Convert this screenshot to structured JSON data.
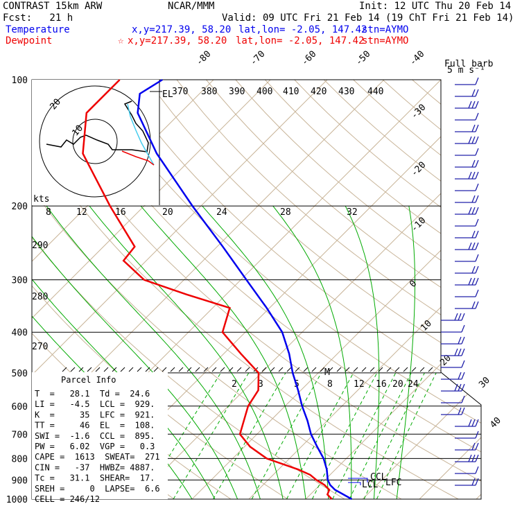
{
  "header": {
    "title": "CONTRAST 15km ARW",
    "org": "NCAR/MMM",
    "init": "Init: 12 UTC Thu 20 Feb 14",
    "fcst": "Fcst:   21 h",
    "valid": "Valid: 09 UTC Fri 21 Feb 14 (19 ChT Fri 21 Feb 14)",
    "temp_label": "Temperature",
    "temp_xy": "x,y=217.39, 58.20",
    "temp_latlon": "lat,lon= -2.05, 147.42",
    "temp_stn": "stn=AYMO",
    "dew_label": "Dewpoint",
    "dew_marker": "☆",
    "dew_xy": "x,y=217.39, 58.20",
    "dew_latlon": "lat,lon= -2.05, 147.42",
    "dew_stn": "stn=AYMO"
  },
  "barb_key": {
    "line1": "Full barb",
    "line2": "5 m s⁻¹"
  },
  "hodograph": {
    "units": "kts",
    "ring_label": "10",
    "ring_outer_label": "20"
  },
  "parcel_info": {
    "title": "Parcel Info",
    "rows": [
      "T  =   28.1  Td =  24.6",
      "LI =   -4.5  LCL =  929.",
      "K  =     35  LFC =  921.",
      "TT =     46  EL  =  108.",
      "SWI =  -1.6  CCL =  895.",
      "PW =   6.02  VGP =   0.3",
      "CAPE =  1613  SWEAT=  271",
      "CIN =   -37  HWBZ= 4887.",
      "Tc =   31.1  SHEAR=  17.",
      "SREH =     0  LAPSE=  6.6",
      "CELL = 246/12"
    ]
  },
  "markers": {
    "el": "EL",
    "ccl": "CCL",
    "lcl": "LCL",
    "lfc": "LFC",
    "m": "M"
  },
  "colors": {
    "temperature": "#0000ee",
    "dewpoint": "#ee0000",
    "isotherm": "#c8b498",
    "mixing_ratio": "#00aa00",
    "barb": "#2020aa"
  },
  "chart_data": {
    "type": "line",
    "title": "",
    "y_scale": "log-pressure",
    "ylim": [
      1000,
      100
    ],
    "pressure_levels": [
      100,
      200,
      300,
      400,
      500,
      600,
      700,
      800,
      900,
      1000
    ],
    "isotherm_labels": [
      "-80",
      "-70",
      "-60",
      "-50",
      "-40",
      "-30",
      "-20",
      "-10",
      "0",
      "10",
      "20",
      "30",
      "40"
    ],
    "theta_labels": [
      "370",
      "380",
      "390",
      "400",
      "410",
      "420",
      "430",
      "440",
      "290",
      "280",
      "270"
    ],
    "mixing_ratio_labels_upper": [
      "8",
      "12",
      "16",
      "20",
      "24",
      "28",
      "32"
    ],
    "mixing_ratio_labels_lower": [
      "2",
      "3",
      "5",
      "8",
      "12",
      "16",
      "20",
      "24"
    ],
    "series": [
      {
        "name": "Temperature",
        "points": [
          [
            1000,
            28.1
          ],
          [
            950,
            23.5
          ],
          [
            925,
            21.8
          ],
          [
            900,
            20.5
          ],
          [
            850,
            18.5
          ],
          [
            800,
            16.0
          ],
          [
            750,
            12.8
          ],
          [
            700,
            9.5
          ],
          [
            650,
            6.5
          ],
          [
            600,
            3.0
          ],
          [
            550,
            -0.5
          ],
          [
            500,
            -4.5
          ],
          [
            450,
            -8.5
          ],
          [
            400,
            -13.5
          ],
          [
            350,
            -20.5
          ],
          [
            300,
            -29.0
          ],
          [
            250,
            -39.0
          ],
          [
            200,
            -51.5
          ],
          [
            150,
            -67.0
          ],
          [
            120,
            -77.5
          ],
          [
            108,
            -80.5
          ],
          [
            100,
            -79.0
          ]
        ]
      },
      {
        "name": "Dewpoint",
        "points": [
          [
            1000,
            24.6
          ],
          [
            975,
            23.0
          ],
          [
            950,
            22.5
          ],
          [
            925,
            20.8
          ],
          [
            900,
            18.5
          ],
          [
            875,
            16.5
          ],
          [
            850,
            13.5
          ],
          [
            800,
            6.0
          ],
          [
            750,
            1.0
          ],
          [
            700,
            -3.0
          ],
          [
            600,
            -6.5
          ],
          [
            550,
            -7.5
          ],
          [
            500,
            -10.5
          ],
          [
            450,
            -17.0
          ],
          [
            400,
            -24.0
          ],
          [
            350,
            -27.0
          ],
          [
            325,
            -37.0
          ],
          [
            300,
            -47.0
          ],
          [
            270,
            -54.0
          ],
          [
            250,
            -54.5
          ],
          [
            200,
            -66.0
          ],
          [
            150,
            -80.0
          ],
          [
            120,
            -86.5
          ],
          [
            100,
            -86.5
          ]
        ]
      }
    ]
  }
}
